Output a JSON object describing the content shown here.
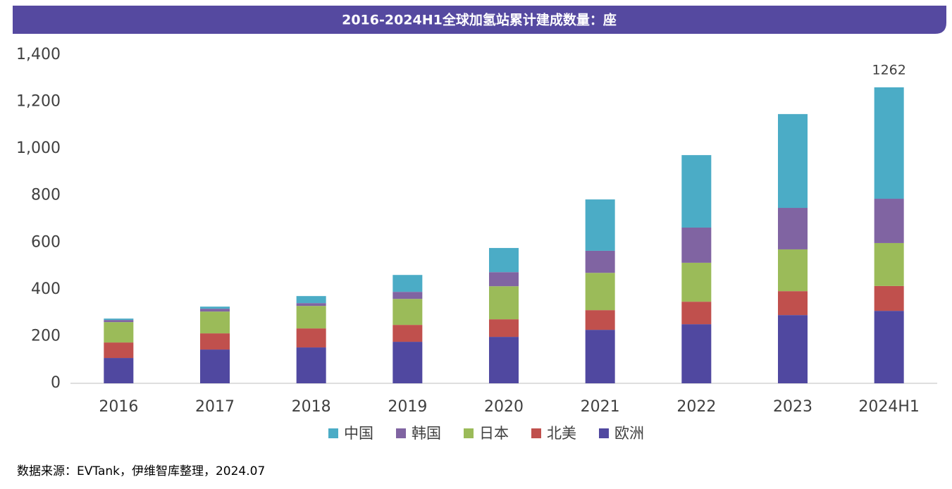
{
  "chart_data": {
    "type": "stacked_bar",
    "title": "2016-2024H1全球加氢站累计建成数量：座",
    "categories": [
      "2016",
      "2017",
      "2018",
      "2019",
      "2020",
      "2021",
      "2022",
      "2023",
      "2024H1"
    ],
    "series": [
      {
        "name": "中国",
        "color": "#4bacc6",
        "values": [
          6,
          9,
          30,
          72,
          103,
          219,
          309,
          400,
          475
        ]
      },
      {
        "name": "韩国",
        "color": "#8064a2",
        "values": [
          9,
          12,
          12,
          30,
          60,
          94,
          150,
          177,
          189
        ]
      },
      {
        "name": "日本",
        "color": "#9bbb59",
        "values": [
          87,
          93,
          96,
          111,
          141,
          159,
          166,
          178,
          183
        ]
      },
      {
        "name": "北美",
        "color": "#c0504d",
        "values": [
          66,
          69,
          81,
          72,
          75,
          84,
          96,
          102,
          106
        ]
      },
      {
        "name": "欧洲",
        "color": "#5048a0",
        "values": [
          108,
          144,
          153,
          177,
          198,
          228,
          252,
          291,
          309
        ]
      }
    ],
    "annotations": [
      {
        "x": "2024H1",
        "value": 1262
      }
    ],
    "ylim": [
      0,
      1400
    ],
    "yticks": [
      0,
      200,
      400,
      600,
      800,
      {
        "value": 1000,
        "label": "1,000"
      },
      {
        "value": 1200,
        "label": "1,200"
      },
      {
        "value": 1400,
        "label": "1,400"
      }
    ],
    "legend": "bottom",
    "source": "数据来源：EVTank，伊维智库整理，2024.07"
  }
}
